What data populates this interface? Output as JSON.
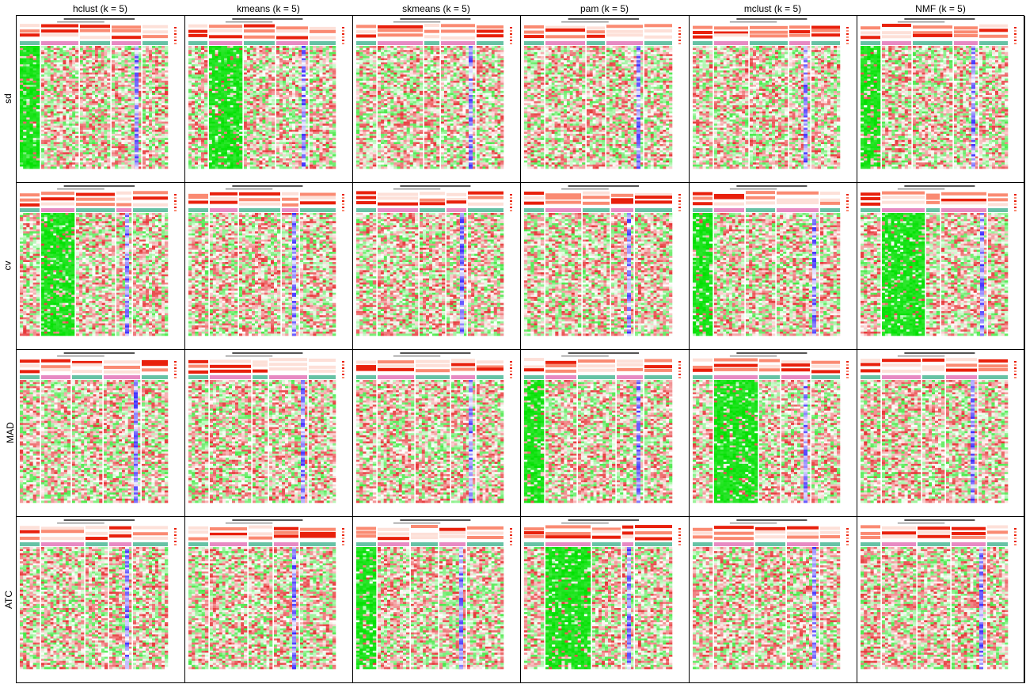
{
  "chart_data": {
    "type": "heatmap",
    "description_of_layout": "",
    "columns": [
      {
        "label": "hclust (k = 5)"
      },
      {
        "label": "kmeans (k = 5)"
      },
      {
        "label": "skmeans (k = 5)"
      },
      {
        "label": "pam (k = 5)"
      },
      {
        "label": "mclust (k = 5)"
      },
      {
        "label": "NMF (k = 5)"
      }
    ],
    "rows": [
      {
        "label": "sd"
      },
      {
        "label": "cv"
      },
      {
        "label": "MAD"
      },
      {
        "label": "ATC"
      }
    ],
    "colors": {
      "high": "#e31a1c",
      "mid": "#ffffff",
      "low": "#00e000",
      "annotation_red": "#e8200c",
      "annotation_salmon": "#fa8a72",
      "annotation_teal": "#66c2a5",
      "annotation_pink": "#e78ac3",
      "annotation_blue": "#3d2dff",
      "border": "#000000"
    }
  }
}
